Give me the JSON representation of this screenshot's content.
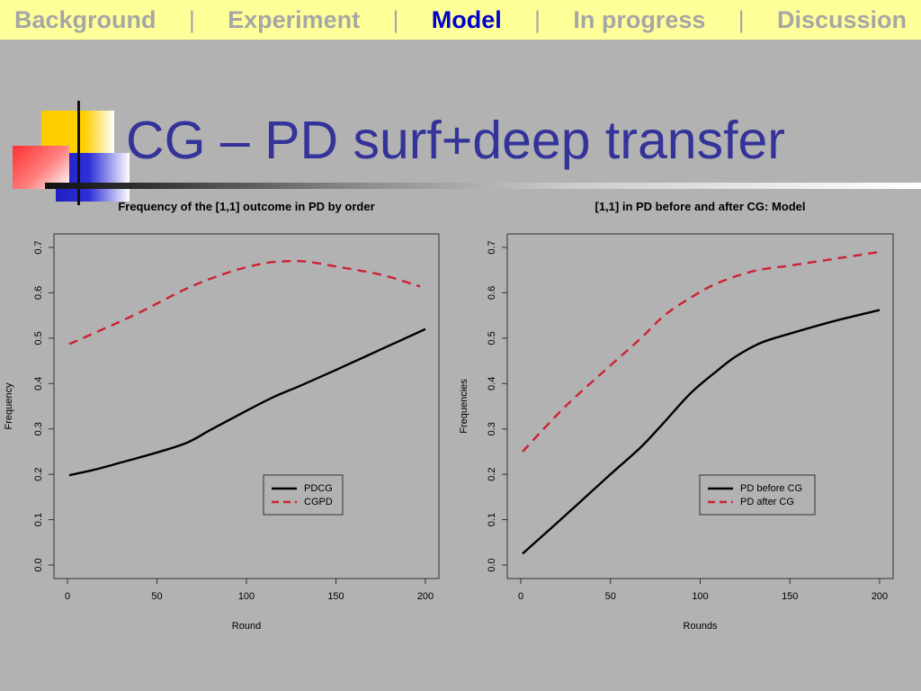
{
  "nav": {
    "items": [
      {
        "label": "Background",
        "active": false
      },
      {
        "label": "Experiment",
        "active": false
      },
      {
        "label": "Model",
        "active": true
      },
      {
        "label": "In progress",
        "active": false
      },
      {
        "label": "Discussion",
        "active": false
      }
    ],
    "separator": "|"
  },
  "slide": {
    "title": "CG – PD surf+deep transfer"
  },
  "chart_data": [
    {
      "type": "line",
      "title": "Frequency of the [1,1] outcome in PD by order",
      "xlabel": "Round",
      "ylabel": "Frequency",
      "xlim": [
        0,
        200
      ],
      "ylim": [
        0,
        0.7
      ],
      "xticks": [
        "0",
        "50",
        "100",
        "150",
        "200"
      ],
      "yticks": [
        "0.0",
        "0.1",
        "0.2",
        "0.3",
        "0.4",
        "0.5",
        "0.6",
        "0.7"
      ],
      "grid": false,
      "legend_position": "bottom-right",
      "series": [
        {
          "name": "PDCG",
          "color": "#000000",
          "dash": "solid",
          "x": [
            1,
            15,
            30,
            50,
            67,
            80,
            100,
            115,
            130,
            150,
            175,
            200
          ],
          "y": [
            0.198,
            0.21,
            0.226,
            0.248,
            0.27,
            0.298,
            0.34,
            0.37,
            0.395,
            0.43,
            0.475,
            0.52
          ]
        },
        {
          "name": "CGPD",
          "color": "#cc2233",
          "dash": "dashed",
          "x": [
            1,
            20,
            40,
            67,
            90,
            110,
            125,
            135,
            150,
            175,
            197
          ],
          "y": [
            0.487,
            0.52,
            0.556,
            0.61,
            0.645,
            0.665,
            0.67,
            0.668,
            0.658,
            0.64,
            0.614
          ]
        }
      ]
    },
    {
      "type": "line",
      "title": "[1,1] in PD before and after CG: Model",
      "xlabel": "Rounds",
      "ylabel": "Frequencies",
      "xlim": [
        0,
        200
      ],
      "ylim": [
        0,
        0.7
      ],
      "xticks": [
        "0",
        "50",
        "100",
        "150",
        "200"
      ],
      "yticks": [
        "0.0",
        "0.1",
        "0.2",
        "0.3",
        "0.4",
        "0.5",
        "0.6",
        "0.7"
      ],
      "grid": false,
      "legend_position": "bottom-right",
      "series": [
        {
          "name": "PD before CG",
          "color": "#000000",
          "dash": "solid",
          "x": [
            1,
            25,
            50,
            67,
            80,
            95,
            110,
            120,
            134,
            150,
            175,
            200
          ],
          "y": [
            0.025,
            0.11,
            0.2,
            0.26,
            0.315,
            0.38,
            0.43,
            0.46,
            0.49,
            0.51,
            0.538,
            0.562
          ]
        },
        {
          "name": "PD after CG",
          "color": "#cc2233",
          "dash": "dashed",
          "x": [
            1,
            25,
            50,
            67,
            80,
            95,
            110,
            130,
            150,
            175,
            200
          ],
          "y": [
            0.25,
            0.35,
            0.44,
            0.5,
            0.55,
            0.59,
            0.622,
            0.648,
            0.66,
            0.675,
            0.69
          ]
        }
      ]
    }
  ]
}
